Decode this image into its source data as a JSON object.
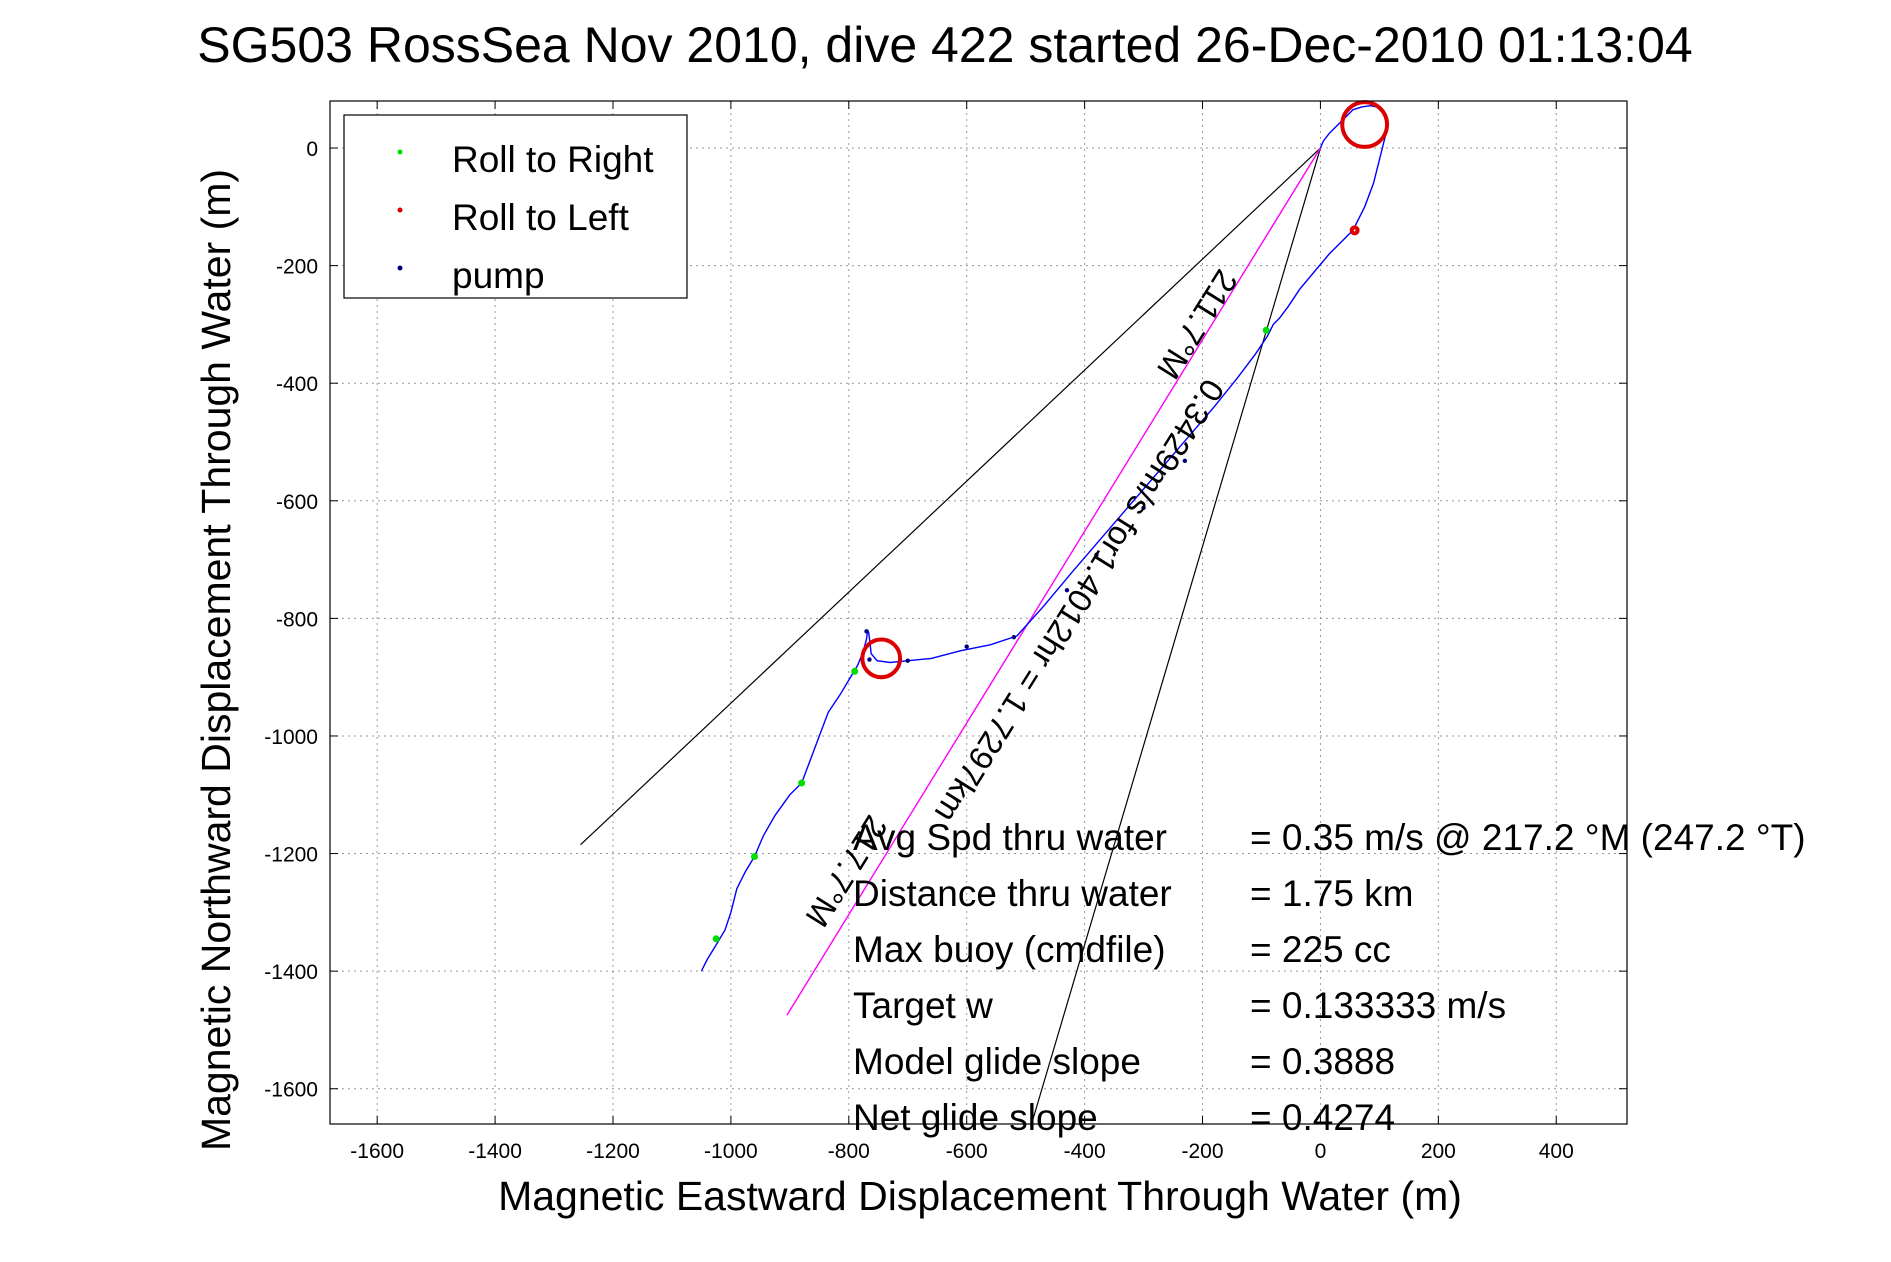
{
  "chart_data": {
    "type": "line",
    "title": "SG503 RossSea Nov 2010, dive 422 started 26-Dec-2010 01:13:04",
    "xlabel": "Magnetic Eastward Displacement Through Water (m)",
    "ylabel": "Magnetic Northward Displacement Through Water (m)",
    "xlim": [
      -1680,
      520
    ],
    "ylim": [
      -1660,
      80
    ],
    "xticks": [
      -1600,
      -1400,
      -1200,
      -1000,
      -800,
      -600,
      -400,
      -200,
      0,
      200,
      400
    ],
    "yticks": [
      0,
      -200,
      -400,
      -600,
      -800,
      -1000,
      -1200,
      -1400,
      -1600
    ],
    "grid": true,
    "legend_position": "top-left",
    "legend": [
      {
        "label": "Roll to Right",
        "marker_color": "#00dd00"
      },
      {
        "label": "Roll to Left",
        "marker_color": "#dd0000"
      },
      {
        "label": "pump",
        "marker_color": "#000080"
      }
    ],
    "track": {
      "name": "track",
      "color": "#0000ff",
      "x": [
        -1050,
        -1040,
        -1025,
        -1010,
        -1000,
        -990,
        -975,
        -960,
        -945,
        -925,
        -900,
        -880,
        -865,
        -850,
        -835,
        -815,
        -800,
        -785,
        -775,
        -770,
        -768,
        -766,
        -762,
        -752,
        -730,
        -700,
        -660,
        -610,
        -560,
        -515,
        -470,
        -420,
        -360,
        -300,
        -240,
        -180,
        -140,
        -110,
        -90,
        -80,
        -70,
        -55,
        -35,
        -10,
        15,
        35,
        55,
        75,
        90,
        100,
        110,
        112,
        105,
        95,
        85,
        70,
        55,
        45,
        35,
        25,
        15,
        5,
        0
      ],
      "y": [
        -1400,
        -1380,
        -1355,
        -1330,
        -1300,
        -1260,
        -1230,
        -1205,
        -1170,
        -1135,
        -1100,
        -1080,
        -1040,
        -1000,
        -960,
        -930,
        -905,
        -880,
        -855,
        -835,
        -820,
        -825,
        -860,
        -872,
        -875,
        -872,
        -868,
        -855,
        -845,
        -830,
        -780,
        -720,
        -650,
        -580,
        -510,
        -440,
        -390,
        -350,
        -320,
        -300,
        -290,
        -270,
        -240,
        -210,
        -180,
        -160,
        -140,
        -100,
        -60,
        -20,
        20,
        50,
        65,
        70,
        72,
        70,
        65,
        55,
        45,
        35,
        25,
        12,
        0
      ]
    },
    "roll_right_points": {
      "x": [
        -1025,
        -960,
        -880,
        -790,
        -92
      ],
      "y": [
        -1345,
        -1205,
        -1080,
        -890,
        -310
      ]
    },
    "roll_left_segments": [
      {
        "cx": -745,
        "cy": -868,
        "r": 32
      },
      {
        "cx": 75,
        "cy": 40,
        "r": 38
      },
      {
        "cx": 58,
        "cy": -140,
        "r": 4
      }
    ],
    "pump_points": {
      "x": [
        -765,
        -700,
        -600,
        -520,
        -430,
        -380,
        -300,
        -230,
        -770
      ],
      "y": [
        -870,
        -872,
        -848,
        -832,
        -752,
        -692,
        -612,
        -532,
        -822
      ]
    },
    "avg_heading_line": {
      "name": "magenta",
      "color": "#ff00ff",
      "x": [
        0,
        -905
      ],
      "y": [
        0,
        -1475
      ]
    },
    "reference_lines": [
      {
        "x": [
          -1255,
          0
        ],
        "y": [
          -1185,
          0
        ]
      },
      {
        "x": [
          0,
          -490
        ],
        "y": [
          0,
          -1660
        ]
      }
    ],
    "annotations": [
      {
        "text": "0.3429m/s for1.4012hr = 1.7297km",
        "x": -425,
        "y": -760,
        "angle": 122
      },
      {
        "text": "211.7°M",
        "x": -225,
        "y": -290,
        "angle": 122
      },
      {
        "text": "217.7°M",
        "x": -820,
        "y": -1220,
        "angle": 122
      }
    ],
    "stats": [
      {
        "label": "Avg Spd thru water",
        "value": "=  0.35 m/s @ 217.2 °M (247.2 °T)"
      },
      {
        "label": "Distance thru water",
        "value": "=  1.75 km"
      },
      {
        "label": "Max buoy (cmdfile)",
        "value": "= 225 cc"
      },
      {
        "label": "Target w",
        "value": "= 0.133333 m/s"
      },
      {
        "label": "Model glide slope",
        "value": "= 0.3888"
      },
      {
        "label": "Net glide slope",
        "value": "= 0.4274"
      }
    ]
  }
}
